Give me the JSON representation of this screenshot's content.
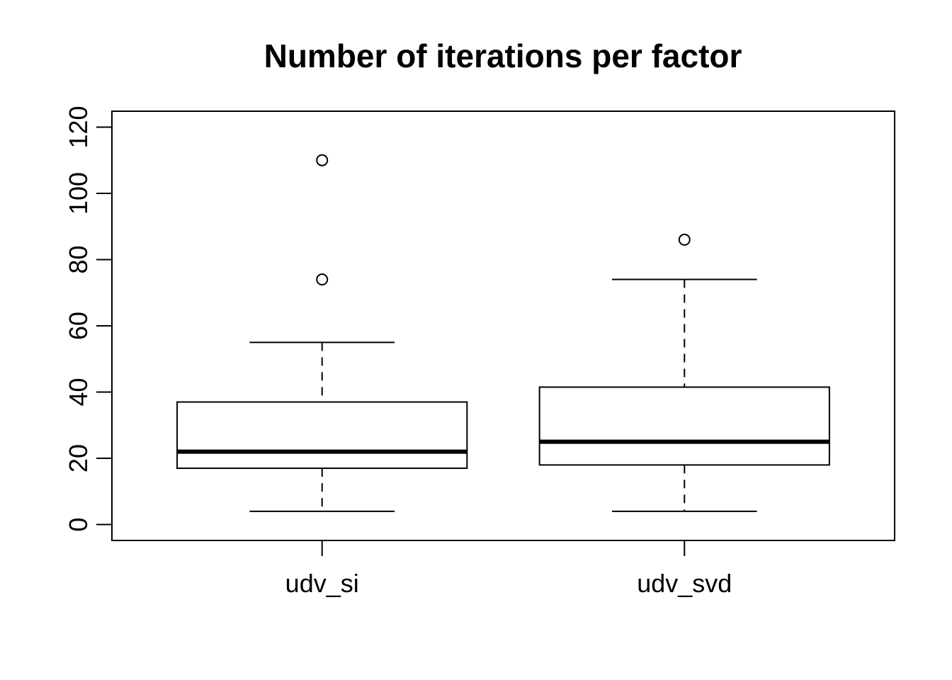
{
  "page": {
    "background": "#ffffff"
  },
  "chart_data": {
    "type": "boxplot",
    "title": "Number of iterations per factor",
    "xlabel": "",
    "ylabel": "",
    "categories": [
      "udv_si",
      "udv_svd"
    ],
    "ylim": [
      0,
      120
    ],
    "yticks": [
      0,
      20,
      40,
      60,
      80,
      100,
      120
    ],
    "grid": false,
    "legend": null,
    "axis_style": "r-base-box",
    "series": [
      {
        "name": "udv_si",
        "lower_whisker": 4,
        "q1": 17,
        "median": 22,
        "q3": 37,
        "upper_whisker": 55,
        "outliers": [
          74,
          110
        ]
      },
      {
        "name": "udv_svd",
        "lower_whisker": 4,
        "q1": 18,
        "median": 25,
        "q3": 41.5,
        "upper_whisker": 74,
        "outliers": [
          86
        ]
      }
    ],
    "colors": {
      "stroke": "#000000",
      "box_fill": "#ffffff",
      "background": "#ffffff"
    }
  }
}
